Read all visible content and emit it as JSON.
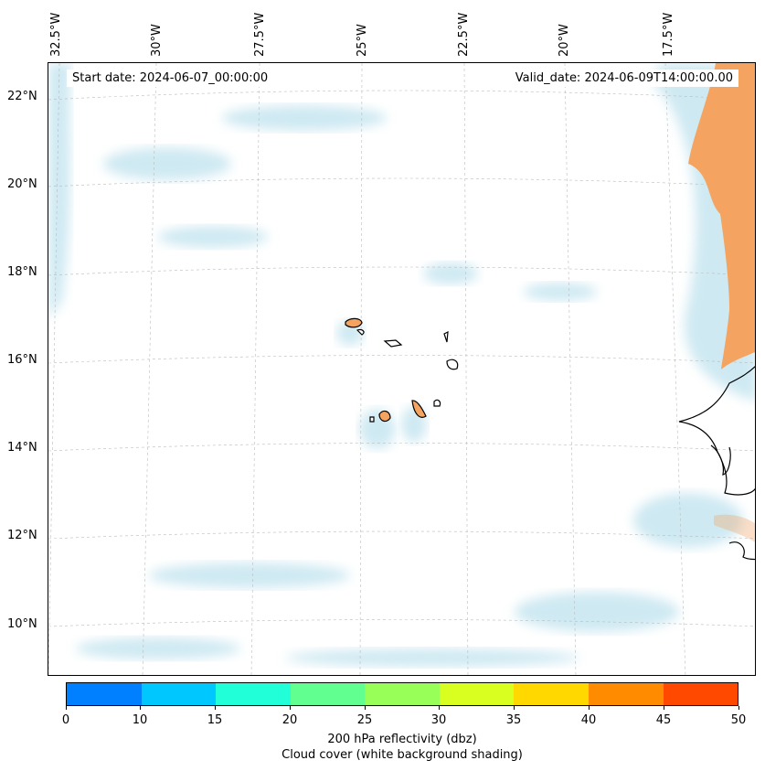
{
  "map": {
    "longitude_labels": [
      "32.5°W",
      "30°W",
      "27.5°W",
      "25°W",
      "22.5°W",
      "20°W",
      "17.5°W"
    ],
    "latitude_labels": [
      "22°N",
      "20°N",
      "18°N",
      "16°N",
      "14°N",
      "12°N",
      "10°N"
    ],
    "start_date": "Start date: 2024-06-07_00:00:00",
    "valid_date": "Valid_date: 2024-06-09T14:00:00.00",
    "colors": {
      "cloud": "#a8d8e8",
      "land": "#f4a460",
      "coast": "#000000",
      "grid": "#bbbbbb"
    }
  },
  "colorbar": {
    "ticks": [
      "0",
      "10",
      "15",
      "20",
      "25",
      "30",
      "35",
      "40",
      "45",
      "50"
    ],
    "colors": [
      "#0080ff",
      "#00c8ff",
      "#20ffd8",
      "#60ff90",
      "#98ff58",
      "#d8ff20",
      "#ffd800",
      "#ff8c00",
      "#ff4800"
    ],
    "label": "200 hPa reflectivity (dbz)",
    "sublabel": "Cloud cover (white background shading)"
  }
}
